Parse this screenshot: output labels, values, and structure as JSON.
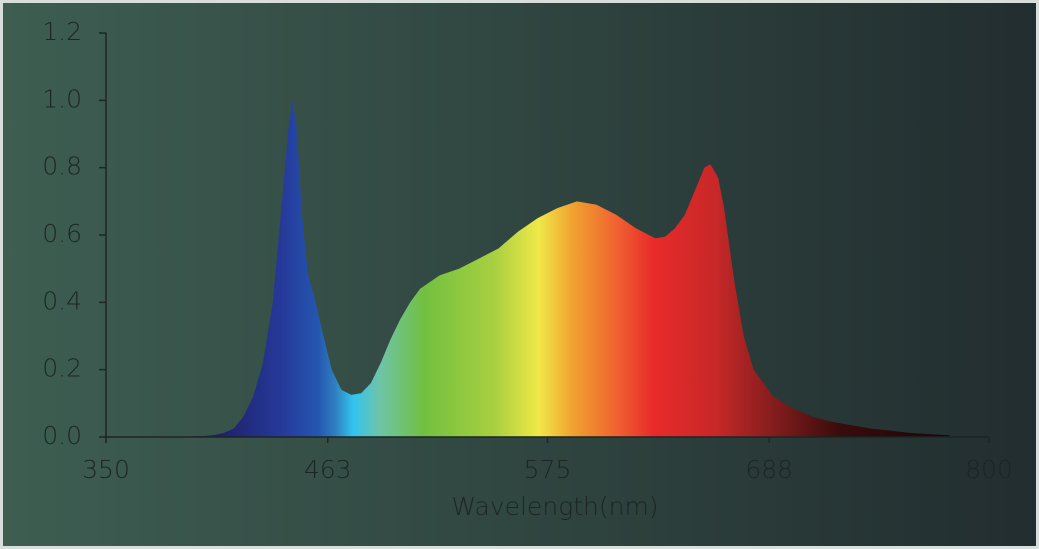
{
  "chart_data": {
    "type": "area",
    "xlabel": "Wavelength(nm)",
    "x": [
      380,
      390,
      400,
      405,
      410,
      415,
      420,
      425,
      430,
      435,
      440,
      443,
      445,
      447,
      450,
      453,
      456,
      460,
      465,
      470,
      475,
      480,
      485,
      490,
      495,
      500,
      505,
      510,
      515,
      520,
      530,
      540,
      550,
      560,
      570,
      580,
      590,
      600,
      610,
      620,
      630,
      635,
      640,
      645,
      650,
      655,
      658,
      662,
      665,
      670,
      675,
      680,
      690,
      700,
      710,
      720,
      740,
      760,
      780
    ],
    "values": [
      0,
      0.001,
      0.003,
      0.006,
      0.012,
      0.025,
      0.06,
      0.12,
      0.22,
      0.4,
      0.72,
      0.92,
      1.0,
      0.93,
      0.65,
      0.48,
      0.42,
      0.32,
      0.2,
      0.14,
      0.125,
      0.13,
      0.16,
      0.22,
      0.29,
      0.35,
      0.4,
      0.44,
      0.46,
      0.48,
      0.5,
      0.53,
      0.56,
      0.61,
      0.65,
      0.68,
      0.7,
      0.69,
      0.66,
      0.62,
      0.59,
      0.595,
      0.62,
      0.66,
      0.73,
      0.8,
      0.81,
      0.77,
      0.68,
      0.47,
      0.3,
      0.2,
      0.12,
      0.085,
      0.06,
      0.045,
      0.025,
      0.012,
      0.005
    ],
    "xlim": [
      350,
      800
    ],
    "xticks": [
      350,
      463,
      575,
      688,
      800
    ],
    "ylim": [
      0,
      1.2
    ],
    "yticks": [
      {
        "value": 0,
        "label": "0.0"
      },
      0.2,
      0.4,
      0.6,
      0.8,
      {
        "value": 1,
        "label": "1.0"
      },
      1.2
    ]
  }
}
